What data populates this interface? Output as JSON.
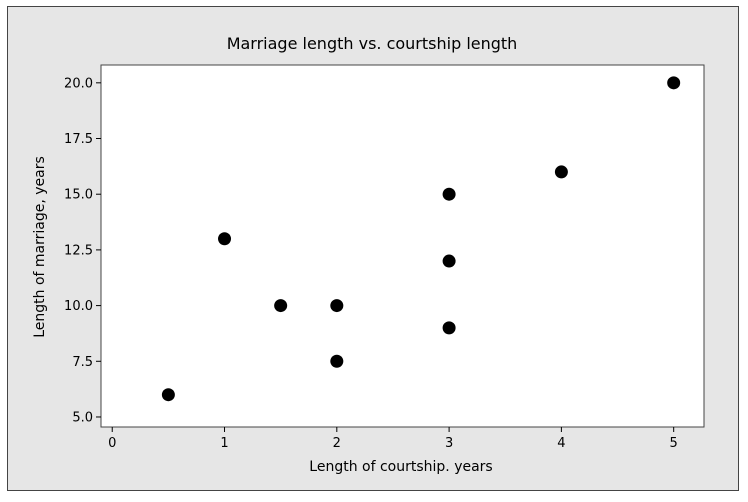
{
  "chart_data": {
    "type": "scatter",
    "title": "Marriage length vs. courtship length",
    "xlabel": "Length of courtship. years",
    "ylabel": "Length of marriage, years",
    "xlim": [
      -0.1,
      5.27
    ],
    "ylim": [
      4.55,
      20.8
    ],
    "x_ticks": [
      0,
      1,
      2,
      3,
      4,
      5
    ],
    "x_tick_labels": [
      "0",
      "1",
      "2",
      "3",
      "4",
      "5"
    ],
    "y_ticks": [
      5.0,
      7.5,
      10.0,
      12.5,
      15.0,
      17.5,
      20.0
    ],
    "y_tick_labels": [
      "5.0",
      "7.5",
      "10.0",
      "12.5",
      "15.0",
      "17.5",
      "20.0"
    ],
    "grid": false,
    "background_color": "#e6e6e6",
    "plot_area_color": "#ffffff",
    "marker_color": "#000000",
    "points": [
      {
        "x": 0.5,
        "y": 6.0
      },
      {
        "x": 1.0,
        "y": 13.0
      },
      {
        "x": 1.5,
        "y": 10.0
      },
      {
        "x": 2.0,
        "y": 10.0
      },
      {
        "x": 2.0,
        "y": 7.5
      },
      {
        "x": 3.0,
        "y": 15.0
      },
      {
        "x": 3.0,
        "y": 12.0
      },
      {
        "x": 3.0,
        "y": 9.0
      },
      {
        "x": 4.0,
        "y": 16.0
      },
      {
        "x": 5.0,
        "y": 20.0
      }
    ]
  }
}
